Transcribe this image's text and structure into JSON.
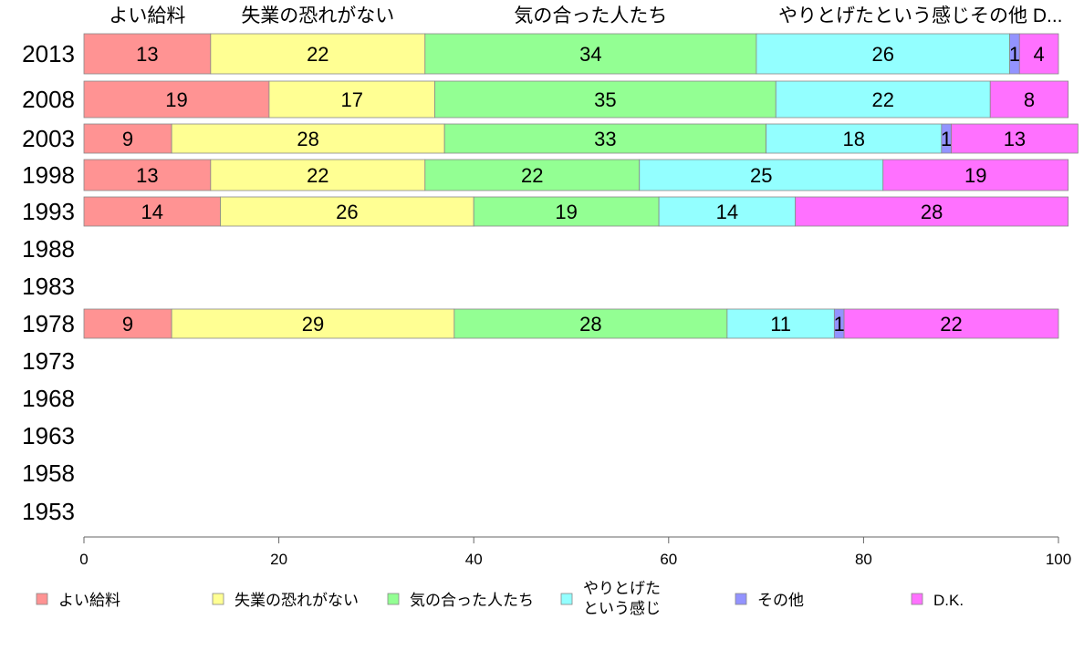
{
  "chart_data": {
    "type": "bar",
    "orientation": "horizontal-stacked-percent",
    "title": "",
    "xlabel": "",
    "ylabel": "",
    "xlim": [
      0,
      100
    ],
    "xticks": [
      "0",
      "20",
      "40",
      "60",
      "80",
      "100"
    ],
    "grid": false,
    "legend_position": "bottom",
    "column_headers": [
      "よい給料",
      "失業の恐れがない",
      "気の合った人たち",
      "やりとげたという感じ",
      "その他",
      "D.K."
    ],
    "header_for_last": "その他 D...",
    "categories": [
      "2013",
      "2008",
      "2003",
      "1998",
      "1993",
      "1988",
      "1983",
      "1978",
      "1973",
      "1968",
      "1963",
      "1958",
      "1953"
    ],
    "series": [
      {
        "name": "よい給料",
        "color": "#ff9393",
        "values": [
          13,
          19,
          9,
          13,
          14,
          null,
          null,
          9,
          null,
          null,
          null,
          null,
          null
        ]
      },
      {
        "name": "失業の恐れがない",
        "color": "#ffff93",
        "values": [
          22,
          17,
          28,
          22,
          26,
          null,
          null,
          29,
          null,
          null,
          null,
          null,
          null
        ]
      },
      {
        "name": "気の合った人たち",
        "color": "#93ff93",
        "values": [
          34,
          35,
          33,
          22,
          19,
          null,
          null,
          28,
          null,
          null,
          null,
          null,
          null
        ]
      },
      {
        "name": "やりとげた\nという感じ",
        "color": "#93ffff",
        "values": [
          26,
          22,
          18,
          25,
          14,
          null,
          null,
          11,
          null,
          null,
          null,
          null,
          null
        ]
      },
      {
        "name": "その他",
        "color": "#9393ff",
        "values": [
          1,
          0,
          1,
          0,
          0,
          null,
          null,
          1,
          null,
          null,
          null,
          null,
          null
        ]
      },
      {
        "name": "D.K.",
        "color": "#ff71ff",
        "values": [
          4,
          8,
          13,
          19,
          28,
          null,
          null,
          22,
          null,
          null,
          null,
          null,
          null
        ]
      }
    ]
  }
}
